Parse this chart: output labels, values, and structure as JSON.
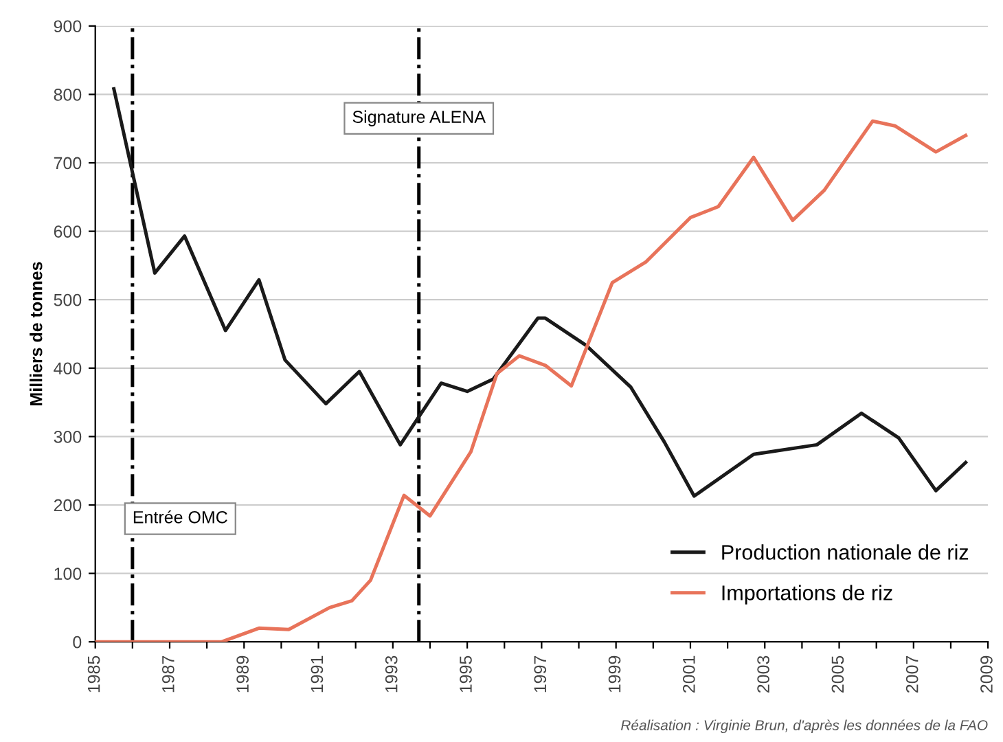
{
  "chart_data": {
    "type": "line",
    "ylabel": "Milliers de tonnes",
    "xlim": [
      1985,
      2009
    ],
    "xticks": [
      1985,
      {
        "value": 1986,
        "label": null
      },
      1987,
      {
        "value": 1988,
        "label": null
      },
      1989,
      {
        "value": 1990,
        "label": null
      },
      1991,
      {
        "value": 1992,
        "label": null
      },
      1993,
      {
        "value": 1994,
        "label": null
      },
      1995,
      {
        "value": 1996,
        "label": null
      },
      1997,
      {
        "value": 1998,
        "label": null
      },
      1999,
      {
        "value": 2000,
        "label": null
      },
      2001,
      {
        "value": 2002,
        "label": null
      },
      2003,
      {
        "value": 2004,
        "label": null
      },
      2005,
      {
        "value": 2006,
        "label": null
      },
      2007,
      {
        "value": 2008,
        "label": null
      },
      2009
    ],
    "ylim": [
      0,
      900
    ],
    "yticks": [
      0,
      100,
      200,
      300,
      400,
      500,
      600,
      700,
      800,
      900
    ],
    "grid": "y",
    "legend": "bottom right",
    "line_style": "solid",
    "marker": "none",
    "series": [
      {
        "name": "Production nationale de riz",
        "color": "#1a1a1a",
        "x": [
          1985.5,
          1986.6,
          1987.4,
          1988.5,
          1989.4,
          1990.1,
          1991.2,
          1992.1,
          1993.2,
          1994.3,
          1995.0,
          1995.7,
          1996.9,
          1997.1,
          1998.2,
          1999.4,
          2000.3,
          2001.1,
          2002.7,
          2004.4,
          2005.6,
          2006.6,
          2007.6,
          2008.4
        ],
        "values": [
          808,
          539,
          593,
          455,
          529,
          412,
          348,
          395,
          288,
          378,
          366,
          384,
          473,
          473,
          433,
          372,
          292,
          213,
          274,
          288,
          334,
          298,
          221,
          262
        ]
      },
      {
        "name": "Importations de riz",
        "color": "#e8735a",
        "x": [
          1985.0,
          1988.4,
          1989.4,
          1990.2,
          1991.3,
          1991.9,
          1992.4,
          1993.3,
          1994.0,
          1995.1,
          1995.8,
          1996.4,
          1997.1,
          1997.8,
          1998.9,
          1999.8,
          2001.0,
          2001.75,
          2002.7,
          2003.75,
          2004.6,
          2005.9,
          2006.5,
          2007.6,
          2008.4
        ],
        "values": [
          0,
          0,
          20,
          18,
          50,
          60,
          90,
          214,
          184,
          278,
          392,
          418,
          404,
          374,
          525,
          555,
          620,
          636,
          708,
          616,
          660,
          761,
          754,
          716,
          740
        ]
      }
    ],
    "ref_lines": [
      {
        "axis": "x",
        "value": 1986,
        "label": "Entrée OMC",
        "color": "#000000",
        "line_style": "dashdot"
      },
      {
        "axis": "x",
        "value": 1993.7,
        "label": "Signature ALENA",
        "color": "#000000",
        "line_style": "dashdot"
      }
    ],
    "annotations": [
      "Réalisation : Virginie Brun, d'après les données de la FAO"
    ]
  }
}
